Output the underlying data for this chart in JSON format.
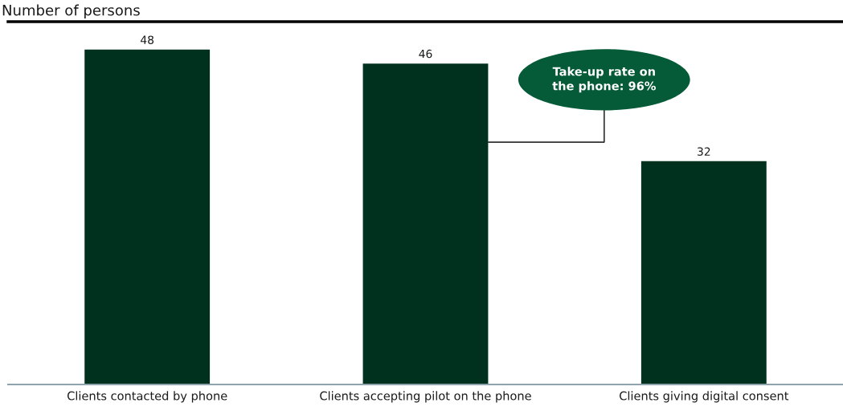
{
  "chart_data": {
    "type": "bar",
    "ylabel": "Number of persons",
    "categories": [
      "Clients contacted by phone",
      "Clients accepting pilot on the phone",
      "Clients giving digital consent"
    ],
    "values": [
      48,
      46,
      32
    ],
    "color": "#00311f",
    "ylim": [
      0,
      52
    ],
    "data_labels": true,
    "tick_labels": "x",
    "grid": false,
    "annotations": [
      "Take-up rate on\nthe phone: 96%"
    ]
  }
}
